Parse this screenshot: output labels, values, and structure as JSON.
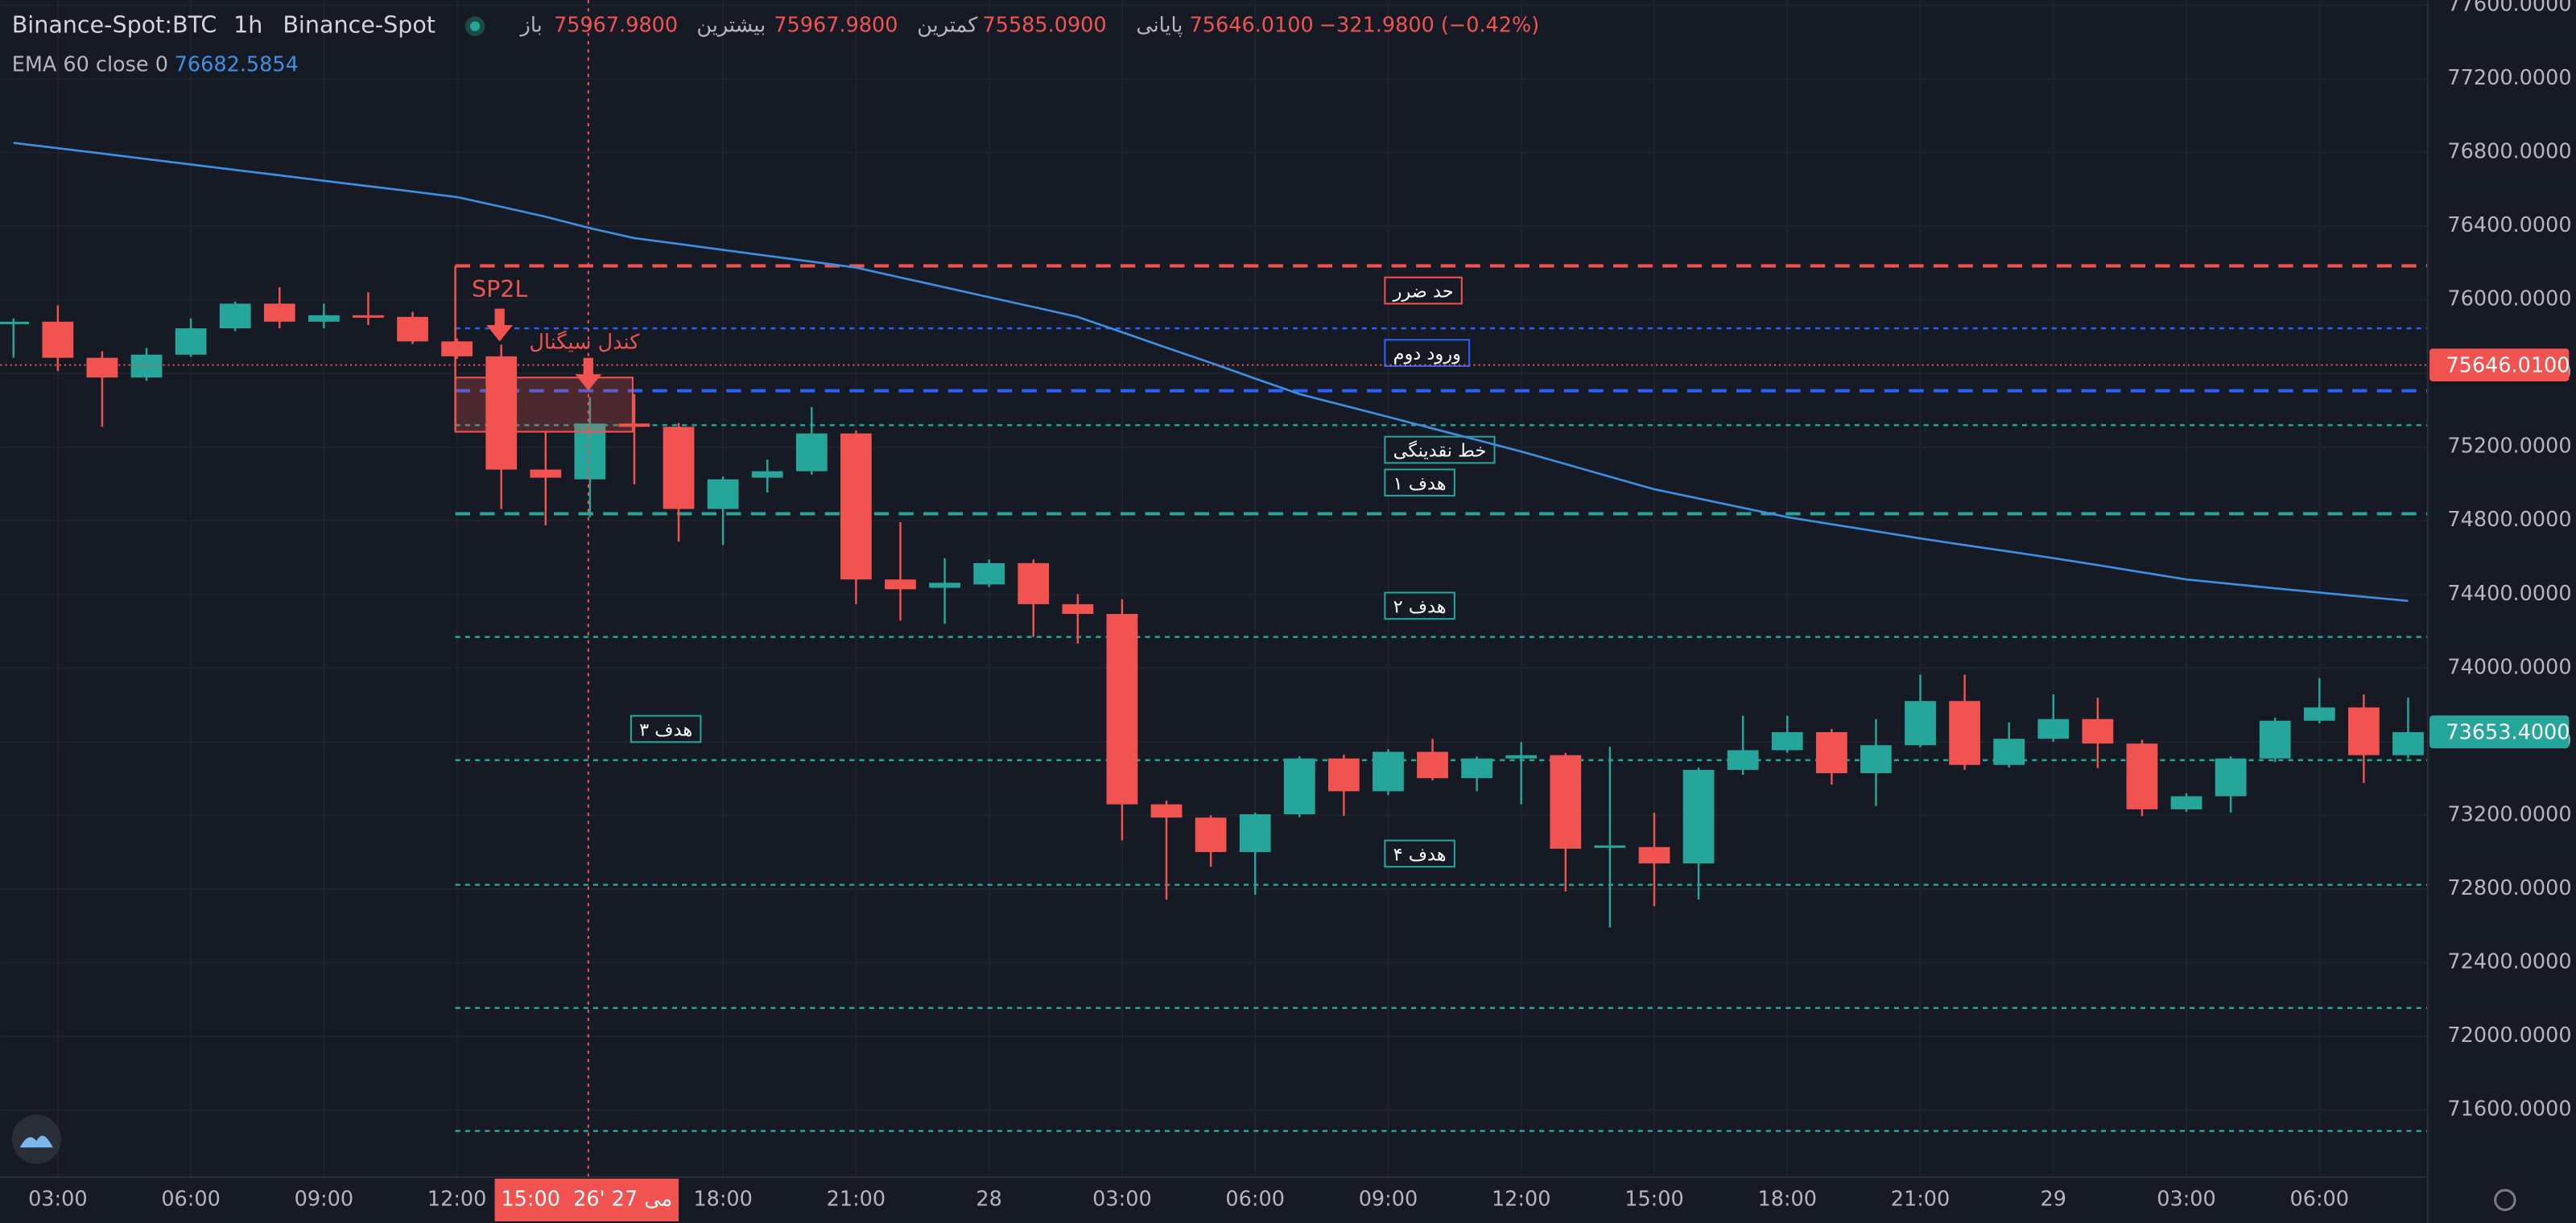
{
  "header": {
    "symbol": "Binance-Spot:BTC",
    "interval": "1h",
    "exchange": "Binance-Spot",
    "ohlc": [
      {
        "label": "باز",
        "value": "75967.9800"
      },
      {
        "label": "بیشترین",
        "value": "75967.9800"
      },
      {
        "label": "کمترین",
        "value": "75585.0900"
      },
      {
        "label": "پایانی",
        "value": "75646.0100"
      }
    ],
    "change": "−321.9800 (−0.42%)"
  },
  "chart_data": {
    "type": "candlestick",
    "up_color": "#26a69a",
    "down_color": "#f05350",
    "categories": [
      null,
      "03:00",
      null,
      null,
      "06:00",
      null,
      null,
      "09:00",
      null,
      null,
      "12:00",
      null,
      null,
      null,
      null,
      null,
      "18:00",
      null,
      null,
      "21:00",
      null,
      null,
      "28",
      null,
      null,
      "03:00",
      null,
      null,
      "06:00",
      null,
      null,
      "09:00",
      null,
      null,
      "12:00",
      null,
      null,
      "15:00",
      null,
      null,
      "18:00",
      null,
      null,
      "21:00",
      null,
      null,
      "29",
      null,
      null,
      "03:00",
      null,
      null,
      "06:00",
      null,
      null
    ],
    "open": [
      75872,
      75881,
      75685,
      75578,
      75702,
      75845,
      75979,
      75881,
      75916,
      75907,
      75774,
      75693,
      75078,
      75025,
      75328,
      75310,
      74864,
      75034,
      75069,
      75274,
      74481,
      74436,
      74454,
      74570,
      74347,
      74294,
      73260,
      73188,
      73001,
      73206,
      73509,
      73331,
      73545,
      73402,
      73509,
      73527,
      73028,
      73028,
      72939,
      73447,
      73554,
      73652,
      73429,
      73581,
      73821,
      73474,
      73616,
      73723,
      73590,
      73233,
      73304,
      73509,
      73714,
      73786,
      73527
    ],
    "high": [
      75899,
      75970,
      75720,
      75738,
      75899,
      75990,
      76068,
      75979,
      76041,
      75934,
      75790,
      75756,
      75283,
      75471,
      75488,
      75330,
      75040,
      75132,
      75417,
      75290,
      74793,
      74597,
      74590,
      74590,
      74401,
      74374,
      73280,
      73200,
      73215,
      73520,
      73530,
      73560,
      73616,
      73520,
      73598,
      73540,
      73572,
      73215,
      73460,
      73741,
      73741,
      73670,
      73723,
      73964,
      73964,
      73705,
      73857,
      73839,
      73610,
      73320,
      73520,
      73730,
      73946,
      73857,
      73839
    ],
    "low": [
      75685,
      75613,
      75310,
      75560,
      75690,
      75830,
      75845,
      75845,
      75863,
      75760,
      75680,
      74864,
      74775,
      74820,
      74998,
      74686,
      74668,
      74953,
      75050,
      74347,
      74258,
      74240,
      74440,
      74169,
      74133,
      73064,
      72743,
      72921,
      72769,
      73190,
      73197,
      73310,
      73390,
      73331,
      73260,
      72787,
      72591,
      72707,
      72743,
      73420,
      73540,
      73367,
      73251,
      73570,
      73447,
      73460,
      73600,
      73456,
      73197,
      73220,
      73215,
      73490,
      73700,
      73376,
      73510
    ],
    "close": [
      75881,
      75685,
      75578,
      75702,
      75845,
      75979,
      75881,
      75916,
      75907,
      75774,
      75693,
      75078,
      75034,
      75328,
      75310,
      74864,
      75025,
      75069,
      75274,
      74481,
      74428,
      74463,
      74570,
      74347,
      74294,
      73260,
      73188,
      73001,
      73206,
      73509,
      73331,
      73545,
      73402,
      73509,
      73527,
      73019,
      73037,
      72939,
      73447,
      73554,
      73652,
      73429,
      73581,
      73821,
      73474,
      73616,
      73723,
      73590,
      73233,
      73304,
      73509,
      73714,
      73786,
      73527,
      73652
    ],
    "ema": {
      "name": "EMA 60 close 0",
      "value_label": "76682.5854",
      "color": "#3d8fe0",
      "values": [
        76852,
        76823,
        76794,
        76764,
        76735,
        76705,
        76676,
        76646,
        76617,
        76588,
        76558,
        76505,
        76451,
        76389,
        76335,
        76303,
        76271,
        76239,
        76207,
        76175,
        76121,
        76068,
        76014,
        75961,
        75907,
        75824,
        75740,
        75658,
        75572,
        75488,
        75426,
        75364,
        75301,
        75239,
        75176,
        75108,
        75039,
        74971,
        74921,
        74870,
        74820,
        74781,
        74743,
        74704,
        74668,
        74633,
        74597,
        74559,
        74520,
        74481,
        74457,
        74433,
        74410,
        74387,
        74365
      ]
    },
    "levels": [
      {
        "value": 76184,
        "label": "حد ضرر",
        "color": "#f05350",
        "style": "dashed"
      },
      {
        "value": 75845,
        "label": "ورود دوم",
        "color": "#2962ff",
        "style": "dotted"
      },
      {
        "value": 75506,
        "color": "#2962ff",
        "style": "dashed"
      },
      {
        "value": 75319,
        "label": "خط نقدینگی",
        "color": "#26a69a",
        "style": "dotted"
      },
      {
        "value": 74838,
        "label": "هدف ۱",
        "color": "#26a69a",
        "style": "dashed"
      },
      {
        "value": 74169,
        "label": "هدف ۲",
        "color": "#26a69a",
        "style": "dotted"
      },
      {
        "value": 73500,
        "label": "هدف ۳",
        "color": "#26a69a",
        "style": "dotted"
      },
      {
        "value": 72823,
        "label": "هدف ۴",
        "color": "#26a69a",
        "style": "dotted"
      },
      {
        "value": 72154,
        "color": "#26a69a",
        "style": "dotted"
      },
      {
        "value": 71486,
        "color": "#26a69a",
        "style": "dotted"
      }
    ],
    "annotations": [
      "SP2L",
      "کندل سیگنال"
    ],
    "crosshair": {
      "price": {
        "value": 75646.01,
        "label": "75646.0100"
      },
      "time": "15:00  26' می 27"
    },
    "last_price": {
      "value": 73653.4,
      "label": "73653.4000"
    },
    "ylim": [
      71236,
      77628
    ],
    "yticks": [
      {
        "value": 71600,
        "label": "71600.0000"
      },
      {
        "value": 72000,
        "label": "72000.0000"
      },
      {
        "value": 72400,
        "label": "72400.0000"
      },
      {
        "value": 72800,
        "label": "72800.0000"
      },
      {
        "value": 73200,
        "label": "73200.0000"
      },
      {
        "value": 73600,
        "label": "73600.0000"
      },
      {
        "value": 74000,
        "label": "74000.0000"
      },
      {
        "value": 74400,
        "label": "74400.0000"
      },
      {
        "value": 74800,
        "label": "74800.0000"
      },
      {
        "value": 75200,
        "label": "75200.0000"
      },
      {
        "value": 75600,
        "label": "75600.0000"
      },
      {
        "value": 76000,
        "label": "76000.0000"
      },
      {
        "value": 76400,
        "label": "76400.0000"
      },
      {
        "value": 76800,
        "label": "76800.0000"
      },
      {
        "value": 77200,
        "label": "77200.0000"
      },
      {
        "value": 77600,
        "label": "77600.0000"
      }
    ],
    "grid": true
  }
}
